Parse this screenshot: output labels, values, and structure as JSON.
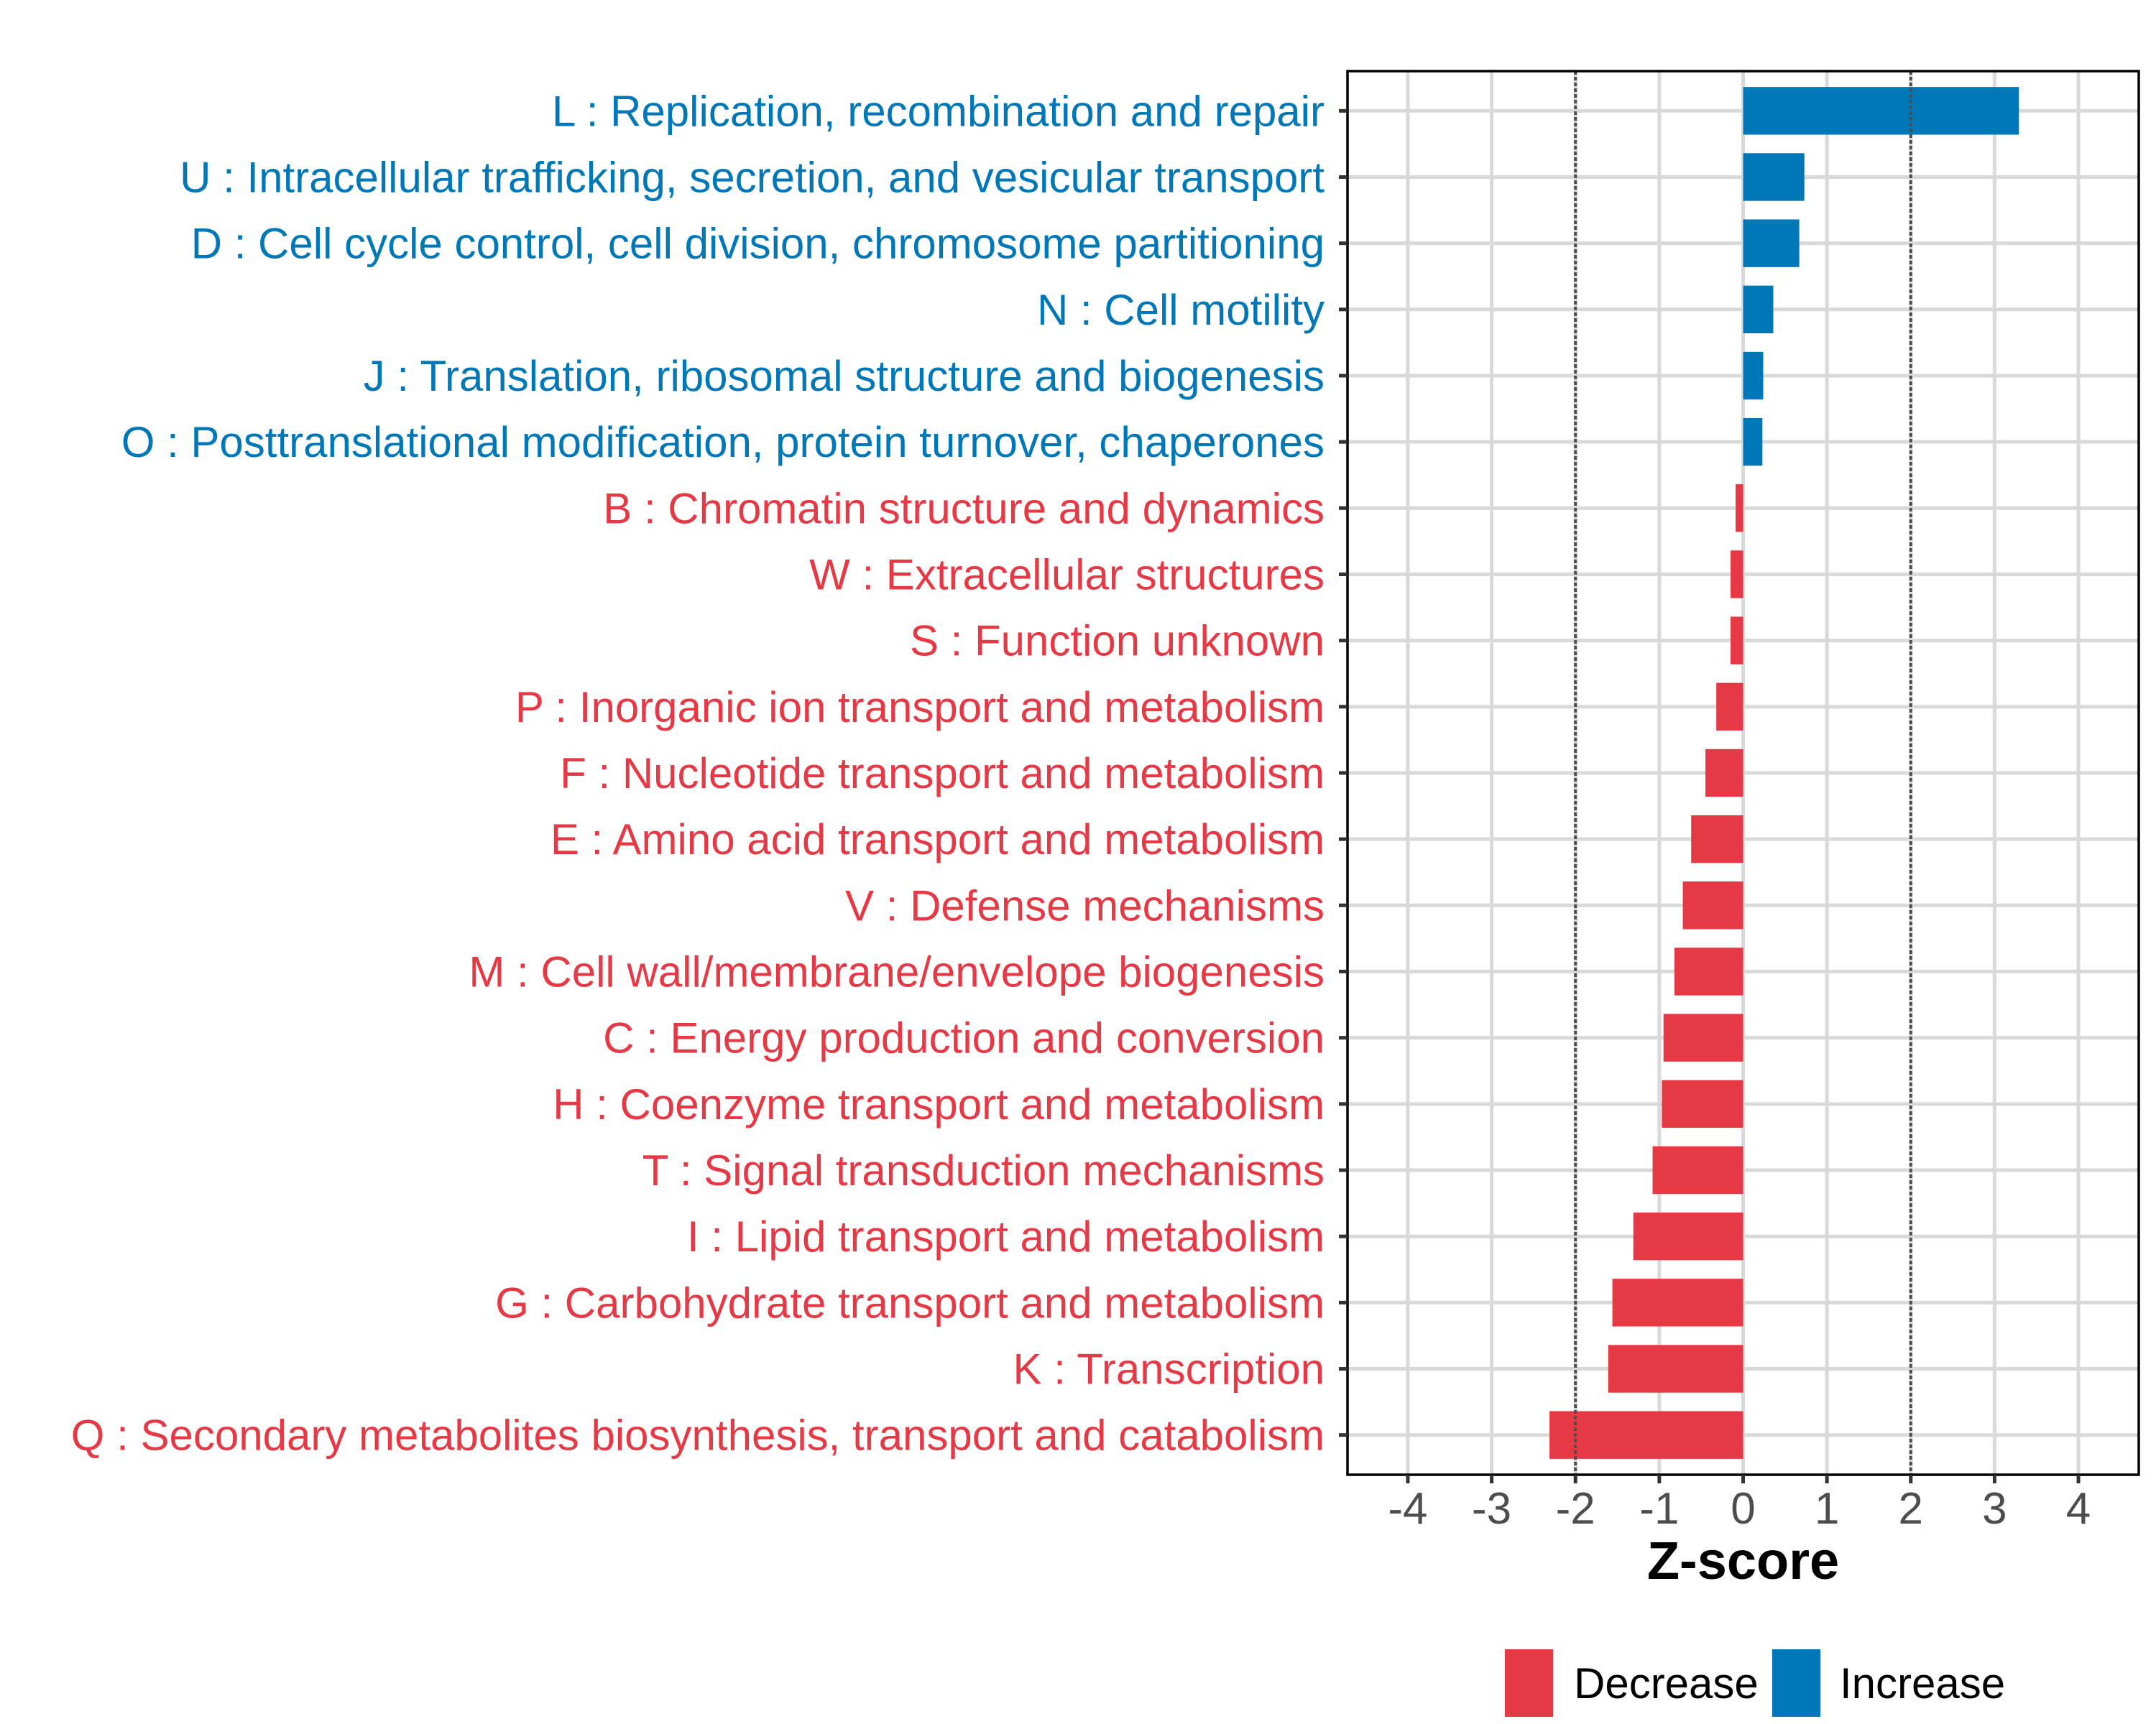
{
  "chart_data": {
    "type": "bar",
    "orientation": "horizontal",
    "title": "",
    "xlabel": "Z-score",
    "ylabel": "",
    "xlim": [
      -4.72,
      4.72
    ],
    "xticks": [
      -4,
      -3,
      -2,
      -1,
      0,
      1,
      2,
      3,
      4
    ],
    "xtick_labels": [
      "-4",
      "-3",
      "-2",
      "-1",
      "0",
      "1",
      "2",
      "3",
      "4"
    ],
    "reference_lines": [
      -2,
      2
    ],
    "grid": true,
    "legend_position": "bottom-right",
    "legend": [
      {
        "name": "Decrease",
        "color": "#E63946"
      },
      {
        "name": "Increase",
        "color": "#0077B6"
      }
    ],
    "categories": [
      "L : Replication, recombination and repair",
      "U : Intracellular trafficking, secretion, and vesicular transport",
      "D : Cell cycle control, cell division, chromosome partitioning",
      "N : Cell motility",
      "J : Translation, ribosomal structure and biogenesis",
      "O : Posttranslational modification, protein turnover, chaperones",
      "B : Chromatin structure and dynamics",
      "W : Extracellular structures",
      "S : Function unknown",
      "P : Inorganic ion transport and metabolism",
      "F : Nucleotide transport and metabolism",
      "E : Amino acid transport and metabolism",
      "V : Defense mechanisms",
      "M : Cell wall/membrane/envelope biogenesis",
      "C : Energy production and conversion",
      "H : Coenzyme transport and metabolism",
      "T : Signal transduction mechanisms",
      "I : Lipid transport and metabolism",
      "G : Carbohydrate transport and metabolism",
      "K : Transcription",
      "Q : Secondary metabolites biosynthesis, transport and catabolism"
    ],
    "values": [
      3.29,
      0.73,
      0.67,
      0.36,
      0.24,
      0.23,
      -0.09,
      -0.15,
      -0.15,
      -0.32,
      -0.45,
      -0.62,
      -0.72,
      -0.82,
      -0.95,
      -0.97,
      -1.08,
      -1.31,
      -1.56,
      -1.61,
      -2.31
    ],
    "groups": [
      "Increase",
      "Increase",
      "Increase",
      "Increase",
      "Increase",
      "Increase",
      "Decrease",
      "Decrease",
      "Decrease",
      "Decrease",
      "Decrease",
      "Decrease",
      "Decrease",
      "Decrease",
      "Decrease",
      "Decrease",
      "Decrease",
      "Decrease",
      "Decrease",
      "Decrease",
      "Decrease"
    ]
  }
}
